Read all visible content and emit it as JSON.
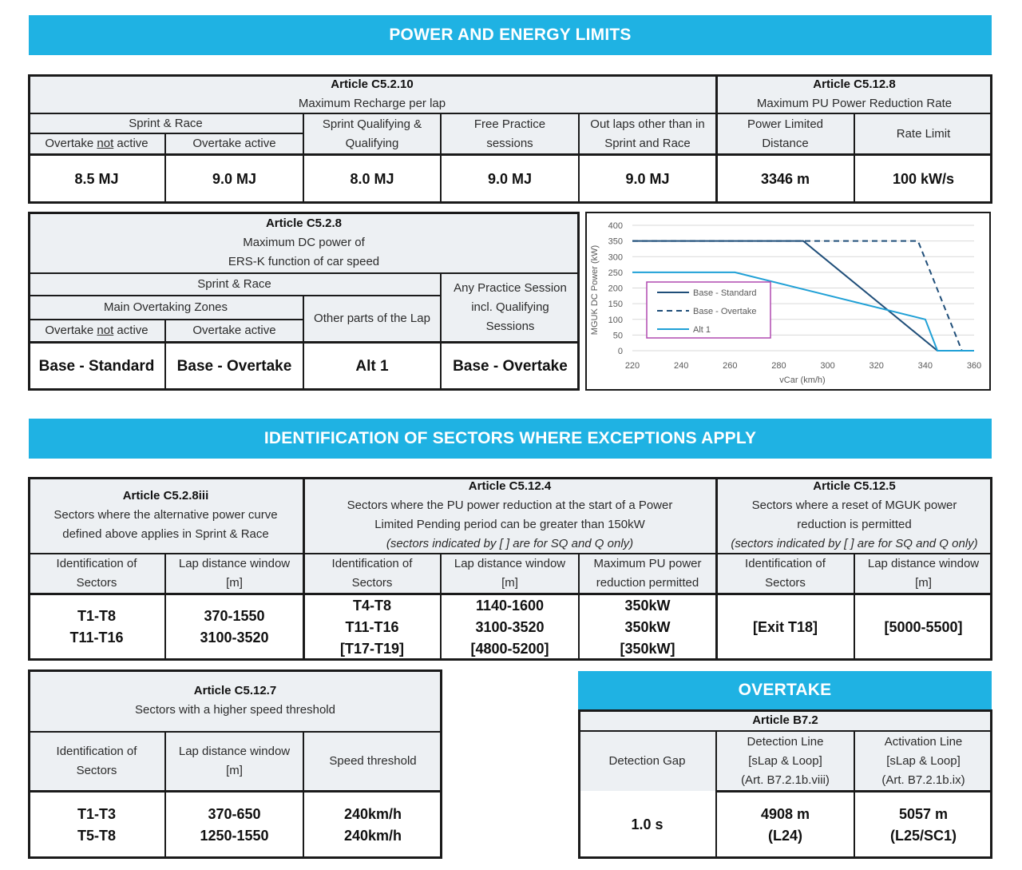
{
  "banners": {
    "power": "POWER AND ENERGY LIMITS",
    "sectors": "IDENTIFICATION OF SECTORS WHERE EXCEPTIONS APPLY",
    "overtake": "OVERTAKE"
  },
  "t1": {
    "art_a": "Article C5.2.10",
    "sub_a": "Maximum Recharge per lap",
    "art_b": "Article C5.12.8",
    "sub_b": "Maximum PU Power Reduction Rate",
    "sprint_race": "Sprint & Race",
    "sq_1": "Sprint Qualifying &",
    "sq_2": "Qualifying",
    "fp_1": "Free Practice",
    "fp_2": "sessions",
    "out_1": "Out laps other than in",
    "out_2": "Sprint and Race",
    "pld_1": "Power Limited",
    "pld_2": "Distance",
    "rate": "Rate Limit",
    "ov_not_a": "Overtake ",
    "ov_not_b": "not",
    "ov_not_c": " active",
    "ov_act": "Overtake active",
    "values": [
      "8.5 MJ",
      "9.0 MJ",
      "8.0 MJ",
      "9.0 MJ",
      "9.0 MJ",
      "3346 m",
      "100 kW/s"
    ]
  },
  "t2": {
    "art": "Article C5.2.8",
    "sub1": "Maximum DC power of",
    "sub2": "ERS-K function of car speed",
    "sprint_race": "Sprint & Race",
    "mainzones": "Main Overtaking Zones",
    "ov_not_a": "Overtake ",
    "ov_not_b": "not",
    "ov_not_c": " active",
    "ov_act": "Overtake active",
    "other": "Other parts of the Lap",
    "prac_1": "Any Practice Session",
    "prac_2": "incl. Qualifying",
    "prac_3": "Sessions",
    "values": [
      "Base - Standard",
      "Base - Overtake",
      "Alt 1",
      "Base - Overtake"
    ]
  },
  "chart_data": {
    "type": "line",
    "xlabel": "vCar (km/h)",
    "ylabel": "MGUK DC Power (kW)",
    "xlim": [
      220,
      360
    ],
    "ylim": [
      0,
      400
    ],
    "xticks": [
      220,
      240,
      260,
      280,
      300,
      320,
      340,
      360
    ],
    "yticks": [
      0,
      50,
      100,
      150,
      200,
      250,
      300,
      350,
      400
    ],
    "grid": "horizontal",
    "legend": "inside, lower-left",
    "series": [
      {
        "name": "Base - Standard",
        "color": "#1f4e79",
        "dash": "solid",
        "x": [
          220,
          290,
          345,
          350,
          360
        ],
        "y": [
          350,
          350,
          0,
          0,
          0
        ]
      },
      {
        "name": "Base - Overtake",
        "color": "#1f4e79",
        "dash": "dashed",
        "x": [
          220,
          337,
          355,
          360
        ],
        "y": [
          350,
          350,
          0,
          0
        ]
      },
      {
        "name": "Alt 1",
        "color": "#1fa0d6",
        "dash": "solid",
        "x": [
          220,
          262,
          340,
          345,
          360
        ],
        "y": [
          250,
          250,
          100,
          0,
          0
        ]
      }
    ]
  },
  "t3": {
    "art_a": "Article C5.2.8iii",
    "sub_a1": "Sectors where the alternative power curve",
    "sub_a2": "defined above applies in Sprint & Race",
    "art_b": "Article C5.12.4",
    "sub_b1": "Sectors where the PU power reduction at the start of a Power",
    "sub_b2": "Limited Pending period can be greater than 150kW",
    "sub_b3": "(sectors indicated by [ ] are for SQ and Q only)",
    "art_c": "Article C5.12.5",
    "sub_c1": "Sectors where a reset of MGUK power",
    "sub_c2": "reduction is permitted",
    "sub_c3": "(sectors indicated by [ ] are for SQ and Q only)",
    "id_1": "Identification of",
    "id_2": "Sectors",
    "lap_1": "Lap distance window",
    "lap_2": "[m]",
    "max_1": "Maximum PU power",
    "max_2": "reduction permitted",
    "v1a": "T1-T8",
    "v1b": "T11-T16",
    "v2a": "370-1550",
    "v2b": "3100-3520",
    "v3a": "T4-T8",
    "v3b": "T11-T16",
    "v3c": "[T17-T19]",
    "v4a": "1140-1600",
    "v4b": "3100-3520",
    "v4c": "[4800-5200]",
    "v5a": "350kW",
    "v5b": "350kW",
    "v5c": "[350kW]",
    "v6": "[Exit T18]",
    "v7": "[5000-5500]"
  },
  "t4": {
    "art": "Article C5.12.7",
    "sub": "Sectors with a higher speed threshold",
    "id_1": "Identification of",
    "id_2": "Sectors",
    "lap_1": "Lap distance window",
    "lap_2": "[m]",
    "speed": "Speed threshold",
    "v1a": "T1-T3",
    "v1b": "T5-T8",
    "v2a": "370-650",
    "v2b": "1250-1550",
    "v3a": "240km/h",
    "v3b": "240km/h"
  },
  "t5": {
    "art": "Article B7.2",
    "gap": "Detection Gap",
    "det_1": "Detection Line",
    "det_2": "[sLap & Loop]",
    "det_3": "(Art. B7.2.1b.viii)",
    "act_1": "Activation Line",
    "act_2": "[sLap & Loop]",
    "act_3": "(Art. B7.2.1b.ix)",
    "v1": "1.0 s",
    "v2a": "4908 m",
    "v2b": "(L24)",
    "v3a": "5057 m",
    "v3b": "(L25/SC1)"
  }
}
